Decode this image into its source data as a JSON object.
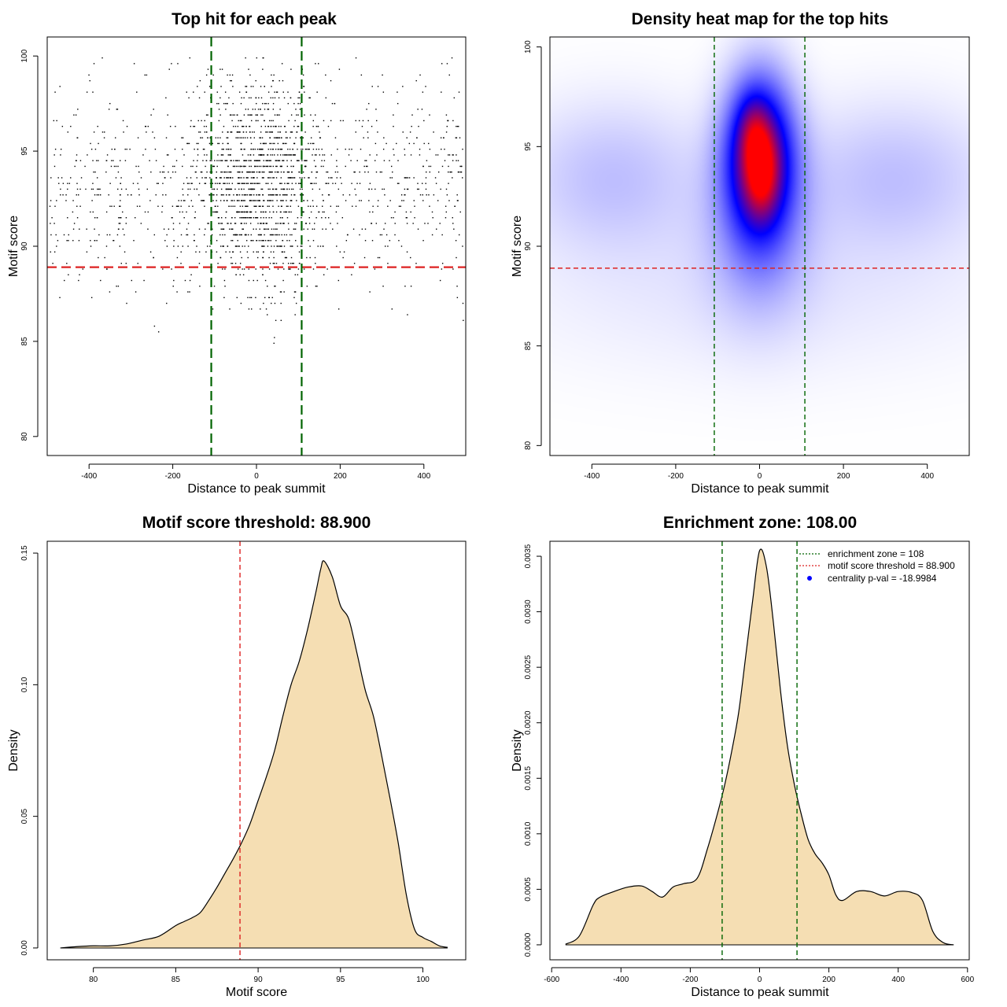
{
  "colors": {
    "threshold": "#dd2222",
    "zone": "#006400",
    "density_fill": "#f5deb3",
    "heat_low": "#ffffff",
    "heat_mid": "#0000ff",
    "heat_high": "#ff0000",
    "centrality": "#0000ff"
  },
  "chart_data": [
    {
      "id": "scatter",
      "type": "scatter",
      "title": "Top hit for each peak",
      "xlabel": "Distance to peak summit",
      "ylabel": "Motif score",
      "xlim": [
        -500,
        500
      ],
      "ylim": [
        79,
        101
      ],
      "xticks": [
        -400,
        -200,
        0,
        200,
        400
      ],
      "xtick_labels": [
        "-400",
        "-200",
        "0",
        "200",
        "400"
      ],
      "yticks": [
        80,
        85,
        90,
        95,
        100
      ],
      "ytick_labels": [
        "80",
        "85",
        "90",
        "95",
        "100"
      ],
      "hline": 88.9,
      "vlines": [
        -108,
        108
      ],
      "points": {
        "n": 2200,
        "x_center_sd": 75,
        "x_center_fraction": 0.55,
        "y_mean": 93.4,
        "y_sd": 2.7,
        "y_resolution": 0.3
      }
    },
    {
      "id": "heatmap",
      "type": "heatmap",
      "title": "Density heat map for the top hits",
      "xlabel": "Distance to peak summit",
      "ylabel": "Motif score",
      "xlim": [
        -500,
        500
      ],
      "ylim": [
        79.5,
        100.5
      ],
      "xticks": [
        -400,
        -200,
        0,
        200,
        400
      ],
      "xtick_labels": [
        "-400",
        "-200",
        "0",
        "200",
        "400"
      ],
      "yticks": [
        80,
        85,
        90,
        95,
        100
      ],
      "ytick_labels": [
        "80",
        "85",
        "90",
        "95",
        "100"
      ],
      "hline": 88.9,
      "vlines": [
        -108,
        108
      ],
      "blobs": [
        {
          "x": 0,
          "y": 94.5,
          "sx": 55,
          "sy": 2.6,
          "w": 1.0
        },
        {
          "x": 5,
          "y": 93.6,
          "sx": 25,
          "sy": 1.4,
          "w": 0.35
        },
        {
          "x": -15,
          "y": 95.8,
          "sx": 25,
          "sy": 1.2,
          "w": 0.25
        },
        {
          "x": 0,
          "y": 91.0,
          "sx": 80,
          "sy": 3.0,
          "w": 0.22
        },
        {
          "x": -350,
          "y": 93.5,
          "sx": 150,
          "sy": 2.5,
          "w": 0.13
        },
        {
          "x": 320,
          "y": 93.5,
          "sx": 160,
          "sy": 2.5,
          "w": 0.13
        },
        {
          "x": 0,
          "y": 88.0,
          "sx": 400,
          "sy": 3.0,
          "w": 0.05
        }
      ]
    },
    {
      "id": "score-density",
      "type": "area",
      "title": "Motif score threshold: 88.900",
      "xlabel": "Motif score",
      "ylabel": "Density",
      "xlim": [
        77.2,
        102.6
      ],
      "ylim": [
        -0.0045,
        0.1545
      ],
      "xticks": [
        80,
        85,
        90,
        95,
        100
      ],
      "xtick_labels": [
        "80",
        "85",
        "90",
        "95",
        "100"
      ],
      "yticks": [
        0,
        0.05,
        0.1,
        0.15
      ],
      "ytick_labels": [
        "0.00",
        "0.05",
        "0.10",
        "0.15"
      ],
      "vline": 88.9,
      "x": [
        78,
        79,
        80,
        81,
        82,
        83,
        84,
        85,
        85.5,
        86,
        86.5,
        87,
        87.5,
        88,
        88.5,
        89,
        89.5,
        90,
        90.5,
        91,
        91.5,
        92,
        92.5,
        93,
        93.5,
        93.8,
        94,
        94.5,
        95,
        95.5,
        96,
        96.5,
        97,
        97.5,
        98,
        98.5,
        99,
        99.5,
        100,
        100.5,
        101,
        101.5
      ],
      "y": [
        0,
        0.0005,
        0.0008,
        0.0008,
        0.0015,
        0.003,
        0.0045,
        0.0085,
        0.01,
        0.0115,
        0.0135,
        0.018,
        0.023,
        0.0285,
        0.034,
        0.04,
        0.047,
        0.056,
        0.065,
        0.075,
        0.088,
        0.1,
        0.109,
        0.121,
        0.135,
        0.144,
        0.147,
        0.141,
        0.13,
        0.125,
        0.112,
        0.098,
        0.088,
        0.073,
        0.057,
        0.04,
        0.02,
        0.007,
        0.004,
        0.0025,
        0.0008,
        0.0002
      ]
    },
    {
      "id": "distance-density",
      "type": "area",
      "title": "Enrichment zone: 108.00",
      "xlabel": "Distance to peak summit",
      "ylabel": "Density",
      "xlim": [
        -605,
        605
      ],
      "ylim": [
        -0.000135,
        0.003635
      ],
      "xticks": [
        -600,
        -400,
        -200,
        0,
        200,
        400,
        600
      ],
      "xtick_labels": [
        "-600",
        "-400",
        "-200",
        "0",
        "200",
        "400",
        "600"
      ],
      "yticks": [
        0,
        0.0005,
        0.001,
        0.0015,
        0.002,
        0.0025,
        0.003,
        0.0035
      ],
      "ytick_labels": [
        "0.0000",
        "0.0005",
        "0.0010",
        "0.0015",
        "0.0020",
        "0.0025",
        "0.0030",
        "0.0035"
      ],
      "vlines": [
        -108,
        108
      ],
      "x": [
        -560,
        -520,
        -480,
        -460,
        -420,
        -380,
        -340,
        -310,
        -280,
        -250,
        -220,
        -180,
        -150,
        -120,
        -100,
        -80,
        -60,
        -40,
        -20,
        0,
        20,
        40,
        60,
        80,
        100,
        120,
        140,
        160,
        180,
        200,
        220,
        240,
        280,
        320,
        360,
        400,
        440,
        470,
        500,
        530,
        560
      ],
      "y": [
        5e-06,
        8e-05,
        0.00036,
        0.00043,
        0.00048,
        0.00052,
        0.00053,
        0.00048,
        0.00043,
        0.00052,
        0.00055,
        0.0006,
        0.00087,
        0.0012,
        0.00145,
        0.00175,
        0.0021,
        0.0026,
        0.0031,
        0.00355,
        0.0034,
        0.0029,
        0.0023,
        0.0018,
        0.00145,
        0.00118,
        0.00095,
        0.00082,
        0.00074,
        0.00063,
        0.00045,
        0.0004,
        0.00048,
        0.00048,
        0.00044,
        0.00048,
        0.00047,
        0.0004,
        0.00012,
        2e-05,
        0.0
      ]
    }
  ],
  "legend": {
    "zone": "enrichment zone = 108",
    "threshold": "motif score threshold = 88.900",
    "centrality": "centrality p-val = -18.9984"
  }
}
